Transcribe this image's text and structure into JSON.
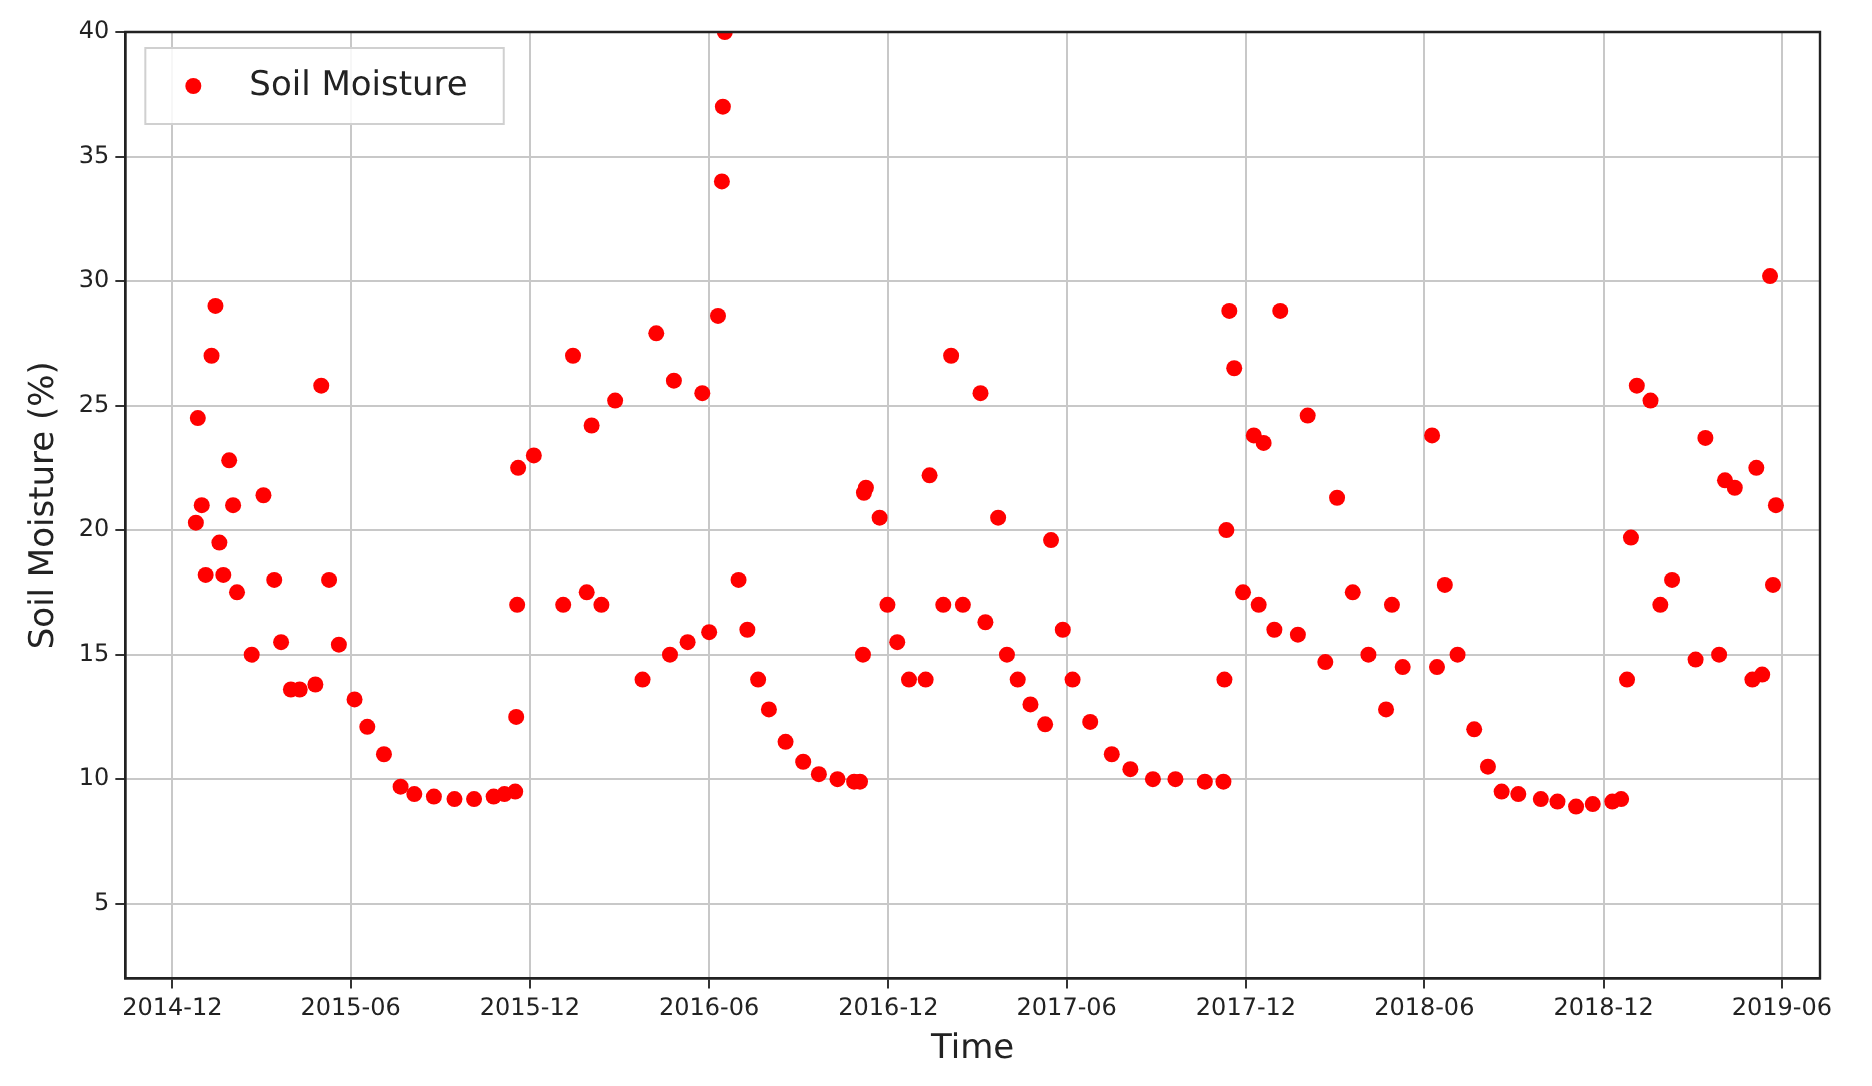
{
  "chart_data": {
    "type": "scatter",
    "xlabel": "Time",
    "ylabel": "Soil Moisture (%)",
    "xlim": [
      "2014-10-14",
      "2019-07-10"
    ],
    "xticks": [
      "2014-12",
      "2015-06",
      "2015-12",
      "2016-06",
      "2016-12",
      "2017-06",
      "2017-12",
      "2018-06",
      "2018-12",
      "2019-06"
    ],
    "ylim": [
      2,
      40
    ],
    "yticks": [
      5,
      10,
      15,
      20,
      25,
      30,
      35,
      40
    ],
    "grid": true,
    "legend": "top left",
    "marker": "circle",
    "series": [
      {
        "name": "Soil Moisture",
        "color": "#ff0000",
        "x": [
          "2014-12-25",
          "2014-12-27",
          "2014-12-31",
          "2015-01-04",
          "2015-01-10",
          "2015-01-14",
          "2015-01-18",
          "2015-01-22",
          "2015-01-28",
          "2015-02-01",
          "2015-02-05",
          "2015-02-20",
          "2015-03-04",
          "2015-04-01",
          "2015-04-26",
          "2015-05-02",
          "2015-05-20",
          "2015-06-18",
          "2015-07-22",
          "2015-08-25",
          "2015-10-25",
          "2015-11-16",
          "2015-11-17",
          "2015-11-18",
          "2015-11-19",
          "2015-12-05",
          "2016-01-04",
          "2016-01-14",
          "2016-01-28",
          "2016-02-02",
          "2016-02-12",
          "2016-02-26",
          "2016-03-25",
          "2016-04-08",
          "2016-04-22",
          "2016-04-26",
          "2016-05-10",
          "2016-05-25",
          "2016-06-01",
          "2016-06-10",
          "2016-06-17",
          "2016-07-01",
          "2016-07-21",
          "2016-08-18",
          "2016-09-21",
          "2016-10-27",
          "2016-11-06",
          "2016-11-08",
          "2016-11-22",
          "2016-11-30",
          "2016-12-22",
          "2017-01-08",
          "2017-01-12",
          "2017-01-26",
          "2017-02-03",
          "2017-02-15",
          "2017-03-05",
          "2017-03-10",
          "2017-03-23",
          "2017-04-12",
          "2017-05-10",
          "2017-05-16",
          "2017-06-07",
          "2017-07-17",
          "2017-08-28",
          "2017-11-08",
          "2017-11-11",
          "2017-11-14",
          "2017-11-19",
          "2017-11-28",
          "2017-12-09",
          "2017-12-14",
          "2017-12-19",
          "2017-12-30",
          "2018-01-05",
          "2018-01-23",
          "2018-02-02",
          "2018-02-20",
          "2018-03-04",
          "2018-04-23",
          "2018-04-29",
          "2018-05-10",
          "2018-06-09",
          "2018-06-14",
          "2018-06-22",
          "2018-07-22",
          "2018-08-19",
          "2018-09-28",
          "2018-11-03",
          "2018-12-19",
          "2018-12-29",
          "2019-01-04",
          "2019-01-18",
          "2019-01-28",
          "2019-02-09",
          "2019-03-05",
          "2019-03-15",
          "2019-03-29",
          "2019-04-04",
          "2019-04-14",
          "2019-05-02",
          "2019-05-06",
          "2019-05-12",
          "2019-05-20",
          "2019-05-23",
          "2019-05-26",
          "2015-03-15",
          "2015-03-22",
          "2015-04-10",
          "2015-05-10",
          "2015-06-05",
          "2015-07-05",
          "2015-08-05",
          "2015-09-15",
          "2015-10-05",
          "2015-11-05",
          "2016-06-14",
          "2016-06-15",
          "2016-07-10",
          "2016-08-01",
          "2016-09-05",
          "2016-10-10",
          "2016-11-02",
          "2016-11-05",
          "2016-12-10",
          "2017-04-01",
          "2017-04-25",
          "2017-05-28",
          "2017-06-25",
          "2017-08-05",
          "2017-09-20",
          "2017-10-20",
          "2017-11-09",
          "2018-03-20",
          "2018-04-05",
          "2018-07-05",
          "2018-08-05",
          "2018-09-05",
          "2018-10-15",
          "2018-11-20",
          "2018-12-10",
          "2018-12-25"
        ],
        "values": [
          20.3,
          24.5,
          21,
          18.2,
          27,
          29,
          19.5,
          18.2,
          22.8,
          21,
          17.5,
          15,
          21.4,
          13.6,
          13.8,
          25.8,
          15.4,
          12.1,
          9.7,
          9.3,
          9.3,
          9.5,
          12.5,
          17,
          22.5,
          23,
          17,
          27,
          17.5,
          24.2,
          17,
          25.2,
          14,
          27.9,
          15,
          26,
          15.5,
          25.5,
          15.9,
          28.6,
          40,
          18,
          14,
          11.5,
          10.2,
          9.9,
          21.5,
          21.7,
          20.5,
          17,
          14,
          14,
          22.2,
          17,
          27,
          17,
          25.5,
          16.3,
          20.5,
          14,
          12.2,
          19.6,
          14,
          11,
          10,
          9.9,
          20,
          28.8,
          26.5,
          17.5,
          23.8,
          17,
          23.5,
          16,
          28.8,
          15.8,
          24.6,
          14.7,
          21.3,
          12.8,
          17,
          14.5,
          23.8,
          14.5,
          17.8,
          12,
          9.5,
          9.2,
          8.9,
          9.2,
          19.7,
          25.8,
          25.2,
          17,
          18,
          14.8,
          23.7,
          15,
          22,
          21.7,
          14,
          22.5,
          14.2,
          30.2,
          17.8,
          21,
          18,
          15.5,
          13.6,
          18,
          13.2,
          11,
          9.4,
          9.2,
          9.2,
          9.4,
          34,
          37,
          16,
          12.8,
          10.7,
          10,
          9.9,
          15,
          15.5,
          15,
          13,
          16,
          12.3,
          10.4,
          10,
          9.9,
          14,
          17.5,
          15,
          15,
          10.5,
          9.4,
          9.1,
          9,
          9.1,
          14
        ]
      }
    ]
  }
}
